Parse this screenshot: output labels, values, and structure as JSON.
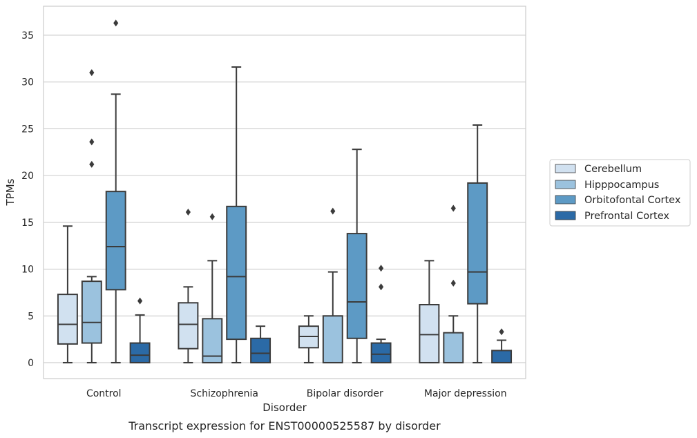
{
  "chart_data": {
    "type": "boxplot",
    "title": "",
    "caption": "Transcript expression for ENST00000525587 by disorder",
    "xlabel": "Disorder",
    "ylabel": "TPMs",
    "ylim": [
      -1.7,
      38.1
    ],
    "yticks": [
      0,
      5,
      10,
      15,
      20,
      25,
      30,
      35
    ],
    "grid": true,
    "legend_position": "right",
    "categories": [
      "Control",
      "Schizophrenia",
      "Bipolar disorder",
      "Major depression"
    ],
    "series": [
      {
        "name": "Cerebellum",
        "color": "#d1e1f0",
        "boxes": [
          {
            "whislo": 0,
            "q1": 2.0,
            "med": 4.1,
            "q3": 7.3,
            "whishi": 14.6,
            "fliers": []
          },
          {
            "whislo": 0,
            "q1": 1.5,
            "med": 4.1,
            "q3": 6.4,
            "whishi": 8.1,
            "fliers": [
              16.1
            ]
          },
          {
            "whislo": 0,
            "q1": 1.6,
            "med": 2.8,
            "q3": 3.9,
            "whishi": 5.0,
            "fliers": []
          },
          {
            "whislo": 0,
            "q1": 0,
            "med": 3.0,
            "q3": 6.2,
            "whishi": 10.9,
            "fliers": []
          }
        ]
      },
      {
        "name": "Hipppocampus",
        "color": "#9bc2de",
        "boxes": [
          {
            "whislo": 0,
            "q1": 2.1,
            "med": 4.3,
            "q3": 8.7,
            "whishi": 9.2,
            "fliers": [
              21.2,
              23.6,
              31.0
            ]
          },
          {
            "whislo": 0,
            "q1": 0,
            "med": 0.7,
            "q3": 4.7,
            "whishi": 10.9,
            "fliers": [
              15.6
            ]
          },
          {
            "whislo": 0,
            "q1": 0,
            "med": 0,
            "q3": 5.0,
            "whishi": 9.7,
            "fliers": [
              16.2
            ]
          },
          {
            "whislo": 0,
            "q1": 0,
            "med": 0,
            "q3": 3.2,
            "whishi": 5.0,
            "fliers": [
              8.5,
              16.5
            ]
          }
        ]
      },
      {
        "name": "Orbitofontal Cortex",
        "color": "#5d9ac5",
        "boxes": [
          {
            "whislo": 0,
            "q1": 7.8,
            "med": 12.4,
            "q3": 18.3,
            "whishi": 28.7,
            "fliers": [
              36.3
            ]
          },
          {
            "whislo": 0,
            "q1": 2.5,
            "med": 9.2,
            "q3": 16.7,
            "whishi": 31.6,
            "fliers": []
          },
          {
            "whislo": 0,
            "q1": 2.6,
            "med": 6.5,
            "q3": 13.8,
            "whishi": 22.8,
            "fliers": []
          },
          {
            "whislo": 0,
            "q1": 6.3,
            "med": 9.7,
            "q3": 19.2,
            "whishi": 25.4,
            "fliers": []
          }
        ]
      },
      {
        "name": "Prefrontal Cortex",
        "color": "#2b6aa6",
        "boxes": [
          {
            "whislo": 0,
            "q1": 0,
            "med": 0.8,
            "q3": 2.1,
            "whishi": 5.1,
            "fliers": [
              6.6
            ]
          },
          {
            "whislo": 0,
            "q1": 0,
            "med": 1.0,
            "q3": 2.6,
            "whishi": 3.9,
            "fliers": []
          },
          {
            "whislo": 0,
            "q1": 0,
            "med": 0.9,
            "q3": 2.1,
            "whishi": 2.5,
            "fliers": [
              8.1,
              10.1
            ]
          },
          {
            "whislo": 0,
            "q1": 0,
            "med": 0,
            "q3": 1.3,
            "whishi": 2.4,
            "fliers": [
              3.3
            ]
          }
        ]
      }
    ]
  }
}
